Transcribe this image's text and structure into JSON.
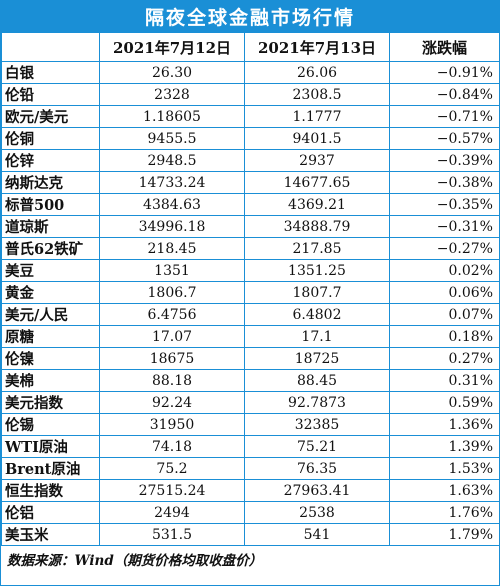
{
  "title": "隔夜全球金融市场行情",
  "header": {
    "col_name": "",
    "col_date1": "2021年7月12日",
    "col_date2": "2021年7月13日",
    "col_change": "涨跌幅"
  },
  "rows": [
    {
      "name": "白银",
      "v1": "26.30",
      "v2": "26.06",
      "change": "−0.91%"
    },
    {
      "name": "伦铅",
      "v1": "2328",
      "v2": "2308.5",
      "change": "−0.84%"
    },
    {
      "name": "欧元/美元",
      "v1": "1.18605",
      "v2": "1.1777",
      "change": "−0.71%"
    },
    {
      "name": "伦铜",
      "v1": "9455.5",
      "v2": "9401.5",
      "change": "−0.57%"
    },
    {
      "name": "伦锌",
      "v1": "2948.5",
      "v2": "2937",
      "change": "−0.39%"
    },
    {
      "name": "纳斯达克",
      "v1": "14733.24",
      "v2": "14677.65",
      "change": "−0.38%"
    },
    {
      "name": "标普500",
      "v1": "4384.63",
      "v2": "4369.21",
      "change": "−0.35%"
    },
    {
      "name": "道琼斯",
      "v1": "34996.18",
      "v2": "34888.79",
      "change": "−0.31%"
    },
    {
      "name": "普氏62铁矿",
      "v1": "218.45",
      "v2": "217.85",
      "change": "−0.27%"
    },
    {
      "name": "美豆",
      "v1": "1351",
      "v2": "1351.25",
      "change": "0.02%"
    },
    {
      "name": "黄金",
      "v1": "1806.7",
      "v2": "1807.7",
      "change": "0.06%"
    },
    {
      "name": "美元/人民",
      "v1": "6.4756",
      "v2": "6.4802",
      "change": "0.07%"
    },
    {
      "name": "原糖",
      "v1": "17.07",
      "v2": "17.1",
      "change": "0.18%"
    },
    {
      "name": "伦镍",
      "v1": "18675",
      "v2": "18725",
      "change": "0.27%"
    },
    {
      "name": "美棉",
      "v1": "88.18",
      "v2": "88.45",
      "change": "0.31%"
    },
    {
      "name": "美元指数",
      "v1": "92.24",
      "v2": "92.7873",
      "change": "0.59%"
    },
    {
      "name": "伦锡",
      "v1": "31950",
      "v2": "32385",
      "change": "1.36%"
    },
    {
      "name": "WTI原油",
      "v1": "74.18",
      "v2": "75.21",
      "change": "1.39%"
    },
    {
      "name": "Brent原油",
      "v1": "75.2",
      "v2": "76.35",
      "change": "1.53%"
    },
    {
      "name": "恒生指数",
      "v1": "27515.24",
      "v2": "27963.41",
      "change": "1.63%"
    },
    {
      "name": "伦铝",
      "v1": "2494",
      "v2": "2538",
      "change": "1.76%"
    },
    {
      "name": "美玉米",
      "v1": "531.5",
      "v2": "541",
      "change": "1.79%"
    }
  ],
  "source": "数据来源：Wind（期货价格均取收盘价）",
  "colors": {
    "frame_blue": "#1a8fd6",
    "title_text": "#ffffff"
  }
}
